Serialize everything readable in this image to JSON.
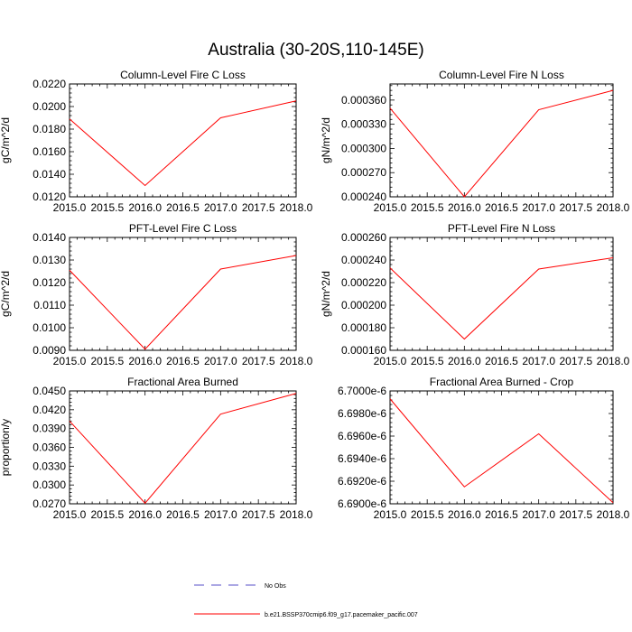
{
  "figure": {
    "title": "Australia (30-20S,110-145E)",
    "line_color": "#ff0000",
    "obs_color": "#5a50c8"
  },
  "legend": {
    "obs_label": "No Obs",
    "model_label": "b.e21.BSSP370cmip6.f09_g17.pacemaker_pacific.007"
  },
  "chart_data": [
    {
      "type": "line",
      "title": "Column-Level Fire C Loss",
      "ylabel": "gC/m^2/d",
      "x": [
        2015,
        2016,
        2017,
        2018
      ],
      "x_ticks": [
        2015.0,
        2015.5,
        2016.0,
        2016.5,
        2017.0,
        2017.5,
        2018.0
      ],
      "x_tick_labels": [
        "2015.0",
        "2015.5",
        "2016.0",
        "2016.5",
        "2017.0",
        "2017.5",
        "2018.0"
      ],
      "xlim": [
        2015,
        2018
      ],
      "ylim": [
        0.012,
        0.022
      ],
      "y_ticks": [
        0.012,
        0.014,
        0.016,
        0.018,
        0.02,
        0.022
      ],
      "y_tick_labels": [
        "0.0120",
        "0.0140",
        "0.0160",
        "0.0180",
        "0.0200",
        "0.0220"
      ],
      "series": [
        {
          "values": [
            0.0189,
            0.013,
            0.019,
            0.0205
          ]
        }
      ]
    },
    {
      "type": "line",
      "title": "Column-Level Fire N Loss",
      "ylabel": "gN/m^2/d",
      "x": [
        2015,
        2016,
        2017,
        2018
      ],
      "x_ticks": [
        2015.0,
        2015.5,
        2016.0,
        2016.5,
        2017.0,
        2017.5,
        2018.0
      ],
      "x_tick_labels": [
        "2015.0",
        "2015.5",
        "2016.0",
        "2016.5",
        "2017.0",
        "2017.5",
        "2018.0"
      ],
      "xlim": [
        2015,
        2018
      ],
      "ylim": [
        0.00024,
        0.00038
      ],
      "y_ticks": [
        0.00024,
        0.00027,
        0.0003,
        0.00033,
        0.00036
      ],
      "y_tick_labels": [
        "0.000240",
        "0.000270",
        "0.000300",
        "0.000330",
        "0.000360"
      ],
      "series": [
        {
          "values": [
            0.00035,
            0.00024,
            0.000348,
            0.000372
          ]
        }
      ]
    },
    {
      "type": "line",
      "title": "PFT-Level Fire C Loss",
      "ylabel": "gC/m^2/d",
      "x": [
        2015,
        2016,
        2017,
        2018
      ],
      "x_ticks": [
        2015.0,
        2015.5,
        2016.0,
        2016.5,
        2017.0,
        2017.5,
        2018.0
      ],
      "x_tick_labels": [
        "2015.0",
        "2015.5",
        "2016.0",
        "2016.5",
        "2017.0",
        "2017.5",
        "2018.0"
      ],
      "xlim": [
        2015,
        2018
      ],
      "ylim": [
        0.009,
        0.014
      ],
      "y_ticks": [
        0.009,
        0.01,
        0.011,
        0.012,
        0.013,
        0.014
      ],
      "y_tick_labels": [
        "0.0090",
        "0.0100",
        "0.0110",
        "0.0120",
        "0.0130",
        "0.0140"
      ],
      "series": [
        {
          "values": [
            0.01255,
            0.00905,
            0.0126,
            0.0132
          ]
        }
      ]
    },
    {
      "type": "line",
      "title": "PFT-Level Fire N Loss",
      "ylabel": "gN/m^2/d",
      "x": [
        2015,
        2016,
        2017,
        2018
      ],
      "x_ticks": [
        2015.0,
        2015.5,
        2016.0,
        2016.5,
        2017.0,
        2017.5,
        2018.0
      ],
      "x_tick_labels": [
        "2015.0",
        "2015.5",
        "2016.0",
        "2016.5",
        "2017.0",
        "2017.5",
        "2018.0"
      ],
      "xlim": [
        2015,
        2018
      ],
      "ylim": [
        0.00016,
        0.00026
      ],
      "y_ticks": [
        0.00016,
        0.00018,
        0.0002,
        0.00022,
        0.00024,
        0.00026
      ],
      "y_tick_labels": [
        "0.000160",
        "0.000180",
        "0.000200",
        "0.000220",
        "0.000240",
        "0.000260"
      ],
      "series": [
        {
          "values": [
            0.000233,
            0.00017,
            0.000232,
            0.000242
          ]
        }
      ]
    },
    {
      "type": "line",
      "title": "Fractional Area Burned",
      "ylabel": "proportion/y",
      "x": [
        2015,
        2016,
        2017,
        2018
      ],
      "x_ticks": [
        2015.0,
        2015.5,
        2016.0,
        2016.5,
        2017.0,
        2017.5,
        2018.0
      ],
      "x_tick_labels": [
        "2015.0",
        "2015.5",
        "2016.0",
        "2016.5",
        "2017.0",
        "2017.5",
        "2018.0"
      ],
      "xlim": [
        2015,
        2018
      ],
      "ylim": [
        0.027,
        0.045
      ],
      "y_ticks": [
        0.027,
        0.03,
        0.033,
        0.036,
        0.039,
        0.042,
        0.045
      ],
      "y_tick_labels": [
        "0.0270",
        "0.0300",
        "0.0330",
        "0.0360",
        "0.0390",
        "0.0420",
        "0.0450"
      ],
      "series": [
        {
          "values": [
            0.0402,
            0.0271,
            0.0413,
            0.0446
          ]
        }
      ]
    },
    {
      "type": "line",
      "title": "Fractional Area Burned - Crop",
      "ylabel": "",
      "x": [
        2015,
        2016,
        2017,
        2018
      ],
      "x_ticks": [
        2015.0,
        2015.5,
        2016.0,
        2016.5,
        2017.0,
        2017.5,
        2018.0
      ],
      "x_tick_labels": [
        "2015.0",
        "2015.5",
        "2016.0",
        "2016.5",
        "2017.0",
        "2017.5",
        "2018.0"
      ],
      "xlim": [
        2015,
        2018
      ],
      "ylim": [
        6.69e-06,
        6.7e-06
      ],
      "y_ticks": [
        6.69e-06,
        6.692e-06,
        6.694e-06,
        6.696e-06,
        6.698e-06,
        6.7e-06
      ],
      "y_tick_labels": [
        "6.6900e-6",
        "6.6920e-6",
        "6.6940e-6",
        "6.6960e-6",
        "6.6980e-6",
        "6.7000e-6"
      ],
      "series": [
        {
          "values": [
            6.6993e-06,
            6.6915e-06,
            6.6962e-06,
            6.6901e-06
          ]
        }
      ]
    }
  ]
}
